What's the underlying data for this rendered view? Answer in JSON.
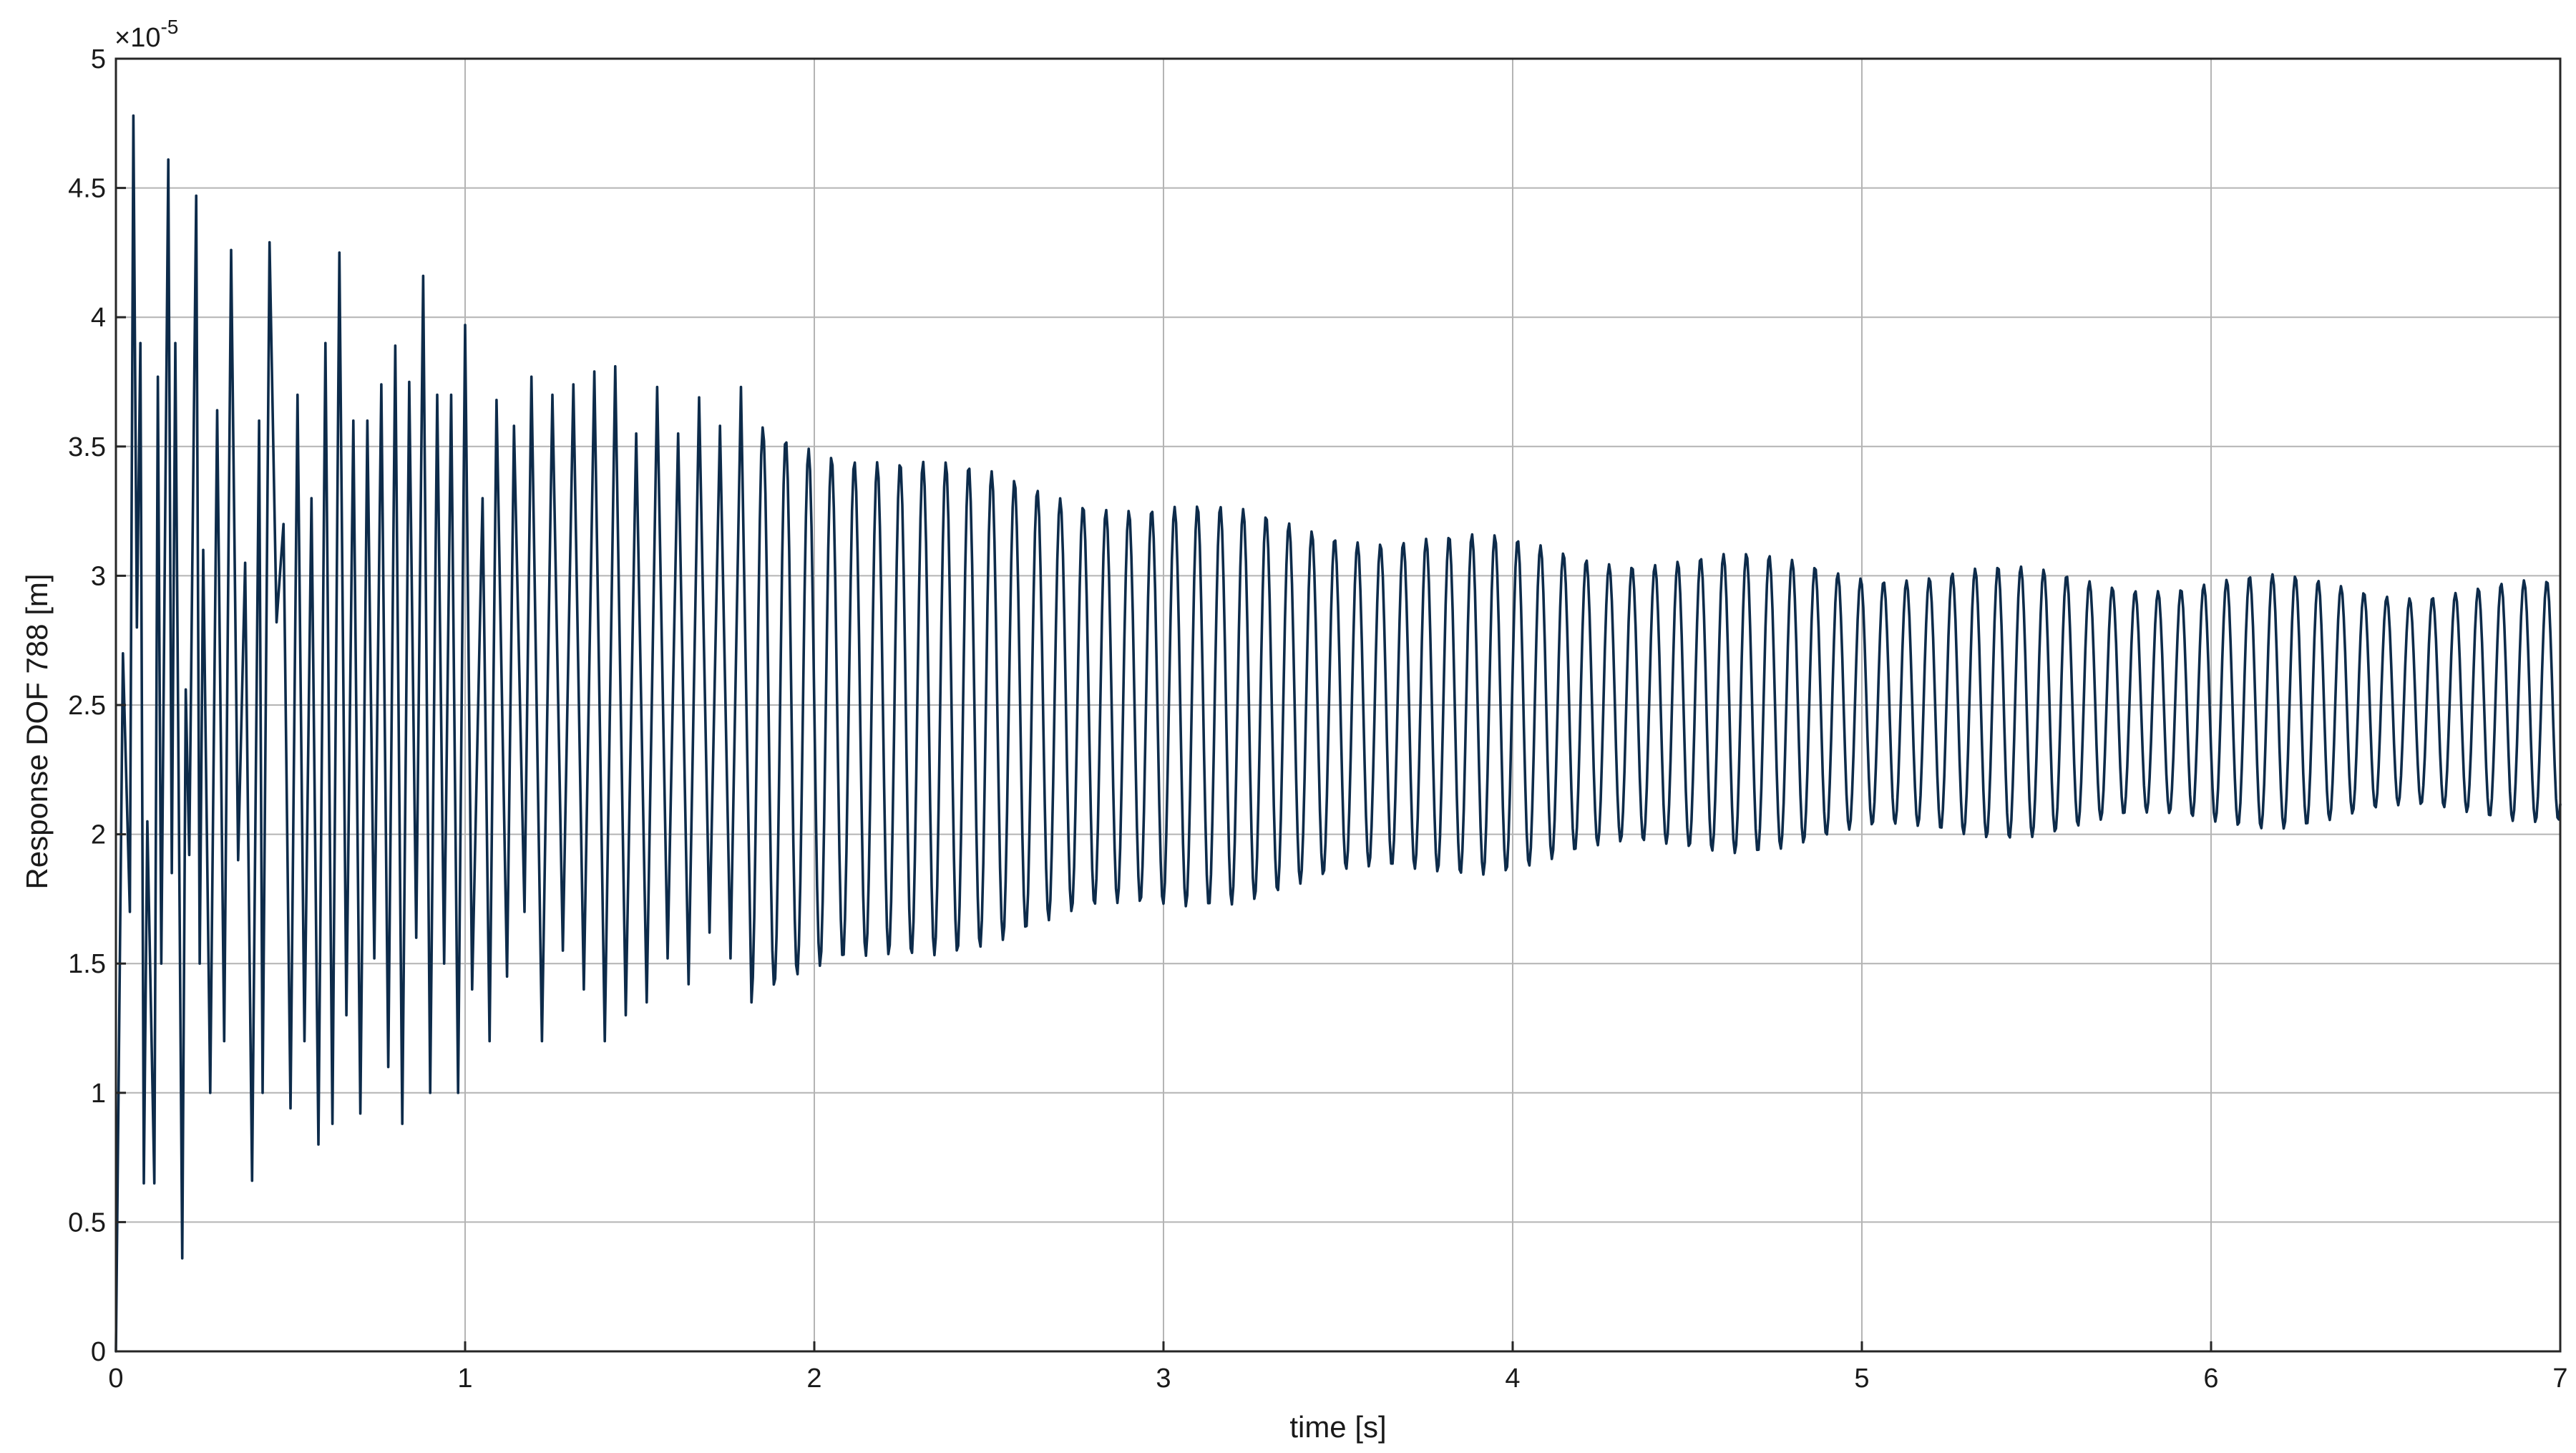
{
  "chart_data": {
    "type": "line",
    "title": "",
    "xlabel": "time [s]",
    "ylabel": "Response DOF 788 [m]",
    "y_multiplier_label": "×10",
    "y_multiplier_exponent": "-5",
    "xlim": [
      0,
      7
    ],
    "ylim": [
      0,
      5
    ],
    "xticks": [
      0,
      1,
      2,
      3,
      4,
      5,
      6,
      7
    ],
    "xtick_labels": [
      "0",
      "1",
      "2",
      "3",
      "4",
      "5",
      "6",
      "7"
    ],
    "yticks": [
      0,
      0.5,
      1,
      1.5,
      2,
      2.5,
      3,
      3.5,
      4,
      4.5,
      5
    ],
    "ytick_labels": [
      "0",
      "0.5",
      "1",
      "1.5",
      "2",
      "2.5",
      "3",
      "3.5",
      "4",
      "4.5",
      "5"
    ],
    "grid": true,
    "legend": "none",
    "line_color": "#0d2b4a",
    "series": [
      {
        "x": [
          0,
          0.02,
          0.04,
          0.05,
          0.06,
          0.07,
          0.08,
          0.09,
          0.11,
          0.12,
          0.13,
          0.15,
          0.16,
          0.17,
          0.19,
          0.2,
          0.21,
          0.23,
          0.24,
          0.25,
          0.27,
          0.29,
          0.31,
          0.33,
          0.35,
          0.37,
          0.39,
          0.41,
          0.42,
          0.44,
          0.46,
          0.48,
          0.5,
          0.52,
          0.54,
          0.56,
          0.58,
          0.6,
          0.62,
          0.64,
          0.66,
          0.68,
          0.7,
          0.72,
          0.74,
          0.76,
          0.78,
          0.8,
          0.82,
          0.84,
          0.86,
          0.88,
          0.9,
          0.92,
          0.94,
          0.96,
          0.98,
          1.0,
          1.02,
          1.05,
          1.07,
          1.09,
          1.12,
          1.14,
          1.17,
          1.19,
          1.22,
          1.25,
          1.28,
          1.31,
          1.34,
          1.37,
          1.4,
          1.43,
          1.46,
          1.49,
          1.52,
          1.55,
          1.58,
          1.61,
          1.64,
          1.67,
          1.7,
          1.73,
          1.76,
          1.79,
          1.82
        ],
        "y": [
          0.0,
          2.7,
          1.7,
          4.78,
          2.8,
          3.9,
          0.65,
          2.05,
          0.65,
          3.77,
          1.5,
          4.61,
          1.85,
          3.9,
          0.36,
          2.56,
          1.92,
          4.47,
          1.5,
          3.1,
          1.0,
          3.64,
          1.2,
          4.26,
          1.9,
          3.05,
          0.66,
          3.6,
          1.0,
          4.29,
          2.82,
          3.2,
          0.94,
          3.7,
          1.2,
          3.3,
          0.8,
          3.9,
          0.88,
          4.25,
          1.3,
          3.6,
          0.92,
          3.6,
          1.52,
          3.74,
          1.1,
          3.89,
          0.88,
          3.75,
          1.6,
          4.16,
          1.0,
          3.7,
          1.5,
          3.7,
          1.0,
          3.97,
          1.4,
          3.3,
          1.2,
          3.68,
          1.45,
          3.58,
          1.7,
          3.77,
          1.2,
          3.7,
          1.55,
          3.74,
          1.4,
          3.79,
          1.2,
          3.81,
          1.3,
          3.55,
          1.35,
          3.73,
          1.52,
          3.55,
          1.42,
          3.69,
          1.62,
          3.58,
          1.52,
          3.73,
          1.35
        ]
      }
    ]
  }
}
